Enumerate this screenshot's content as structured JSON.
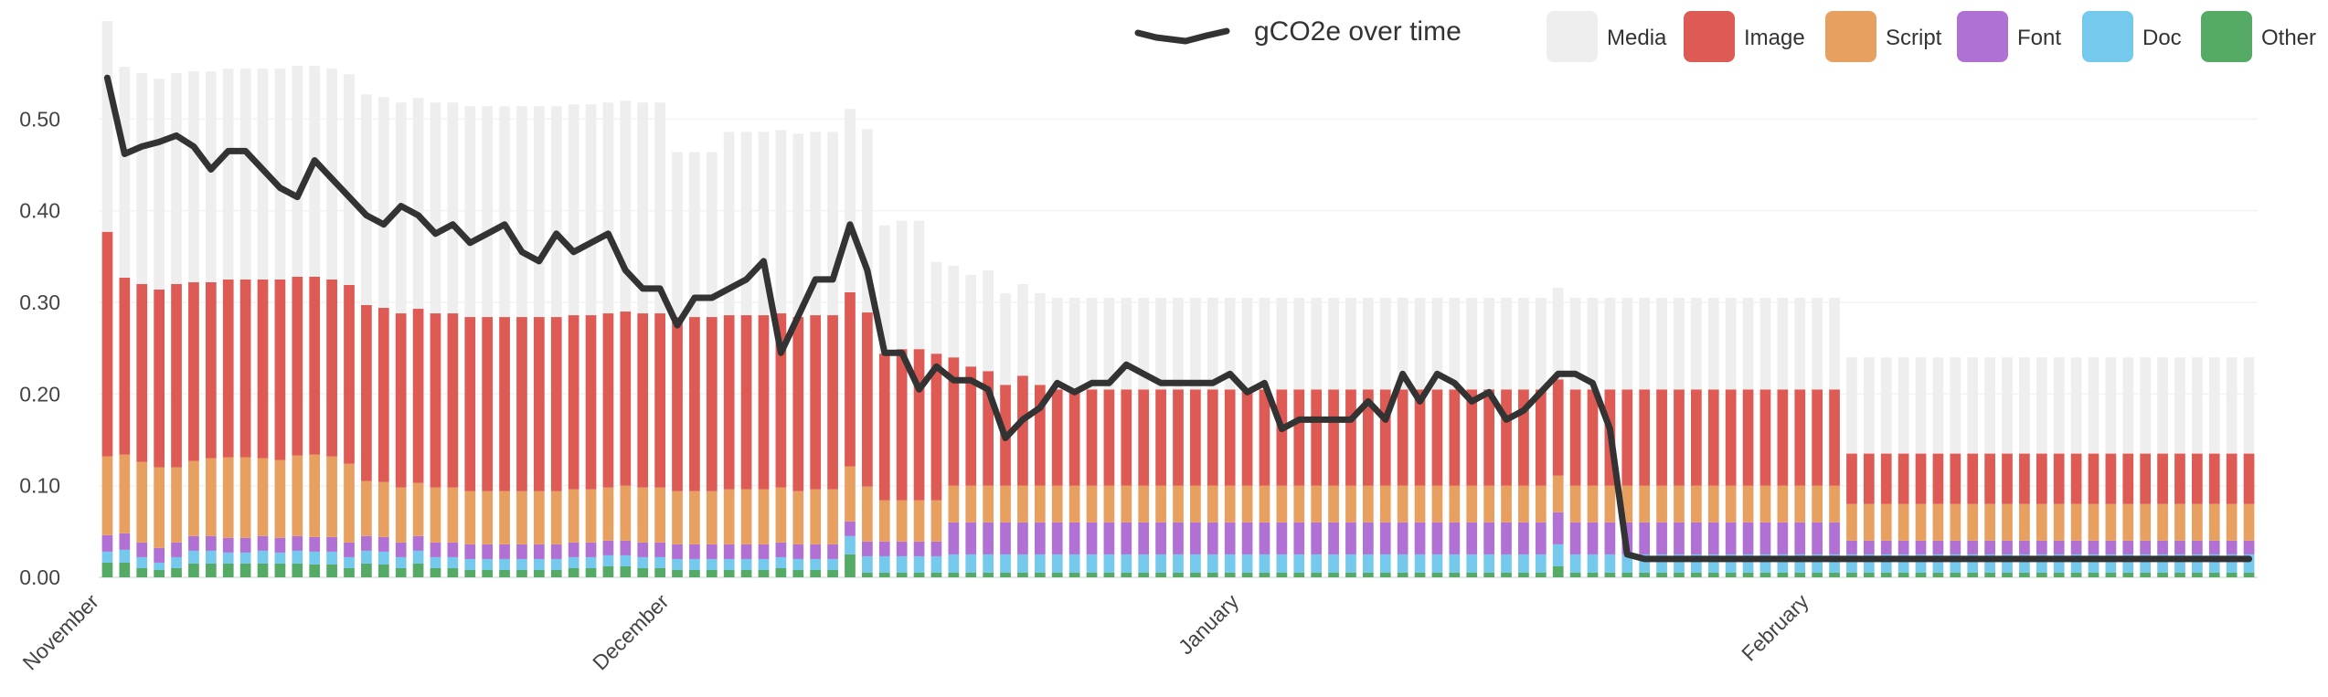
{
  "chart_data": {
    "type": "bar",
    "stacked": true,
    "title": "",
    "xlabel": "",
    "ylabel": "",
    "ylim": [
      0,
      0.6
    ],
    "y_ticks": [
      "0.00",
      "0.10",
      "0.20",
      "0.30",
      "0.40",
      "0.50"
    ],
    "grid": true,
    "legend_position": "top-right",
    "x_month_labels": [
      {
        "label": "November",
        "index": 0
      },
      {
        "label": "December",
        "index": 33
      },
      {
        "label": "January",
        "index": 66
      },
      {
        "label": "February",
        "index": 99
      }
    ],
    "series_order": [
      "Other",
      "Doc",
      "Font",
      "Script",
      "Image",
      "Media"
    ],
    "series": [
      {
        "name": "Other",
        "color": "#55aa66",
        "values": [
          0.016,
          0.016,
          0.01,
          0.008,
          0.01,
          0.015,
          0.015,
          0.015,
          0.015,
          0.015,
          0.015,
          0.015,
          0.014,
          0.014,
          0.01,
          0.015,
          0.014,
          0.01,
          0.015,
          0.01,
          0.01,
          0.008,
          0.008,
          0.008,
          0.008,
          0.008,
          0.008,
          0.01,
          0.01,
          0.012,
          0.012,
          0.01,
          0.01,
          0.008,
          0.008,
          0.008,
          0.008,
          0.008,
          0.008,
          0.01,
          0.008,
          0.008,
          0.008,
          0.025,
          0.005,
          0.005,
          0.005,
          0.005,
          0.005,
          0.005,
          0.005,
          0.005,
          0.005,
          0.005,
          0.005,
          0.005,
          0.005,
          0.005,
          0.005,
          0.005,
          0.005,
          0.005,
          0.005,
          0.005,
          0.005,
          0.005,
          0.005,
          0.005,
          0.005,
          0.005,
          0.005,
          0.005,
          0.005,
          0.005,
          0.005,
          0.005,
          0.005,
          0.005,
          0.005,
          0.005,
          0.005,
          0.005,
          0.005,
          0.005,
          0.012,
          0.005,
          0.005,
          0.005,
          0.005,
          0.005,
          0.005,
          0.005,
          0.005,
          0.005,
          0.005,
          0.005,
          0.005,
          0.005,
          0.005,
          0.005,
          0.005,
          0.005,
          0.005,
          0.005,
          0.005,
          0.005,
          0.005,
          0.005,
          0.005,
          0.005,
          0.005,
          0.005,
          0.005,
          0.005,
          0.005,
          0.005,
          0.005,
          0.005,
          0.005,
          0.005,
          0.005,
          0.005,
          0.005,
          0.005,
          0.005
        ]
      },
      {
        "name": "Doc",
        "color": "#74c9ec",
        "values": [
          0.012,
          0.014,
          0.012,
          0.008,
          0.012,
          0.014,
          0.014,
          0.012,
          0.012,
          0.014,
          0.012,
          0.014,
          0.014,
          0.014,
          0.012,
          0.014,
          0.014,
          0.012,
          0.014,
          0.012,
          0.012,
          0.012,
          0.012,
          0.012,
          0.012,
          0.012,
          0.012,
          0.012,
          0.012,
          0.012,
          0.012,
          0.012,
          0.012,
          0.012,
          0.012,
          0.012,
          0.012,
          0.012,
          0.012,
          0.012,
          0.012,
          0.012,
          0.012,
          0.02,
          0.018,
          0.018,
          0.018,
          0.018,
          0.018,
          0.02,
          0.02,
          0.02,
          0.02,
          0.02,
          0.02,
          0.02,
          0.02,
          0.02,
          0.02,
          0.02,
          0.02,
          0.02,
          0.02,
          0.02,
          0.02,
          0.02,
          0.02,
          0.02,
          0.02,
          0.02,
          0.02,
          0.02,
          0.02,
          0.02,
          0.02,
          0.02,
          0.02,
          0.02,
          0.02,
          0.02,
          0.02,
          0.02,
          0.02,
          0.02,
          0.024,
          0.02,
          0.02,
          0.02,
          0.02,
          0.02,
          0.02,
          0.02,
          0.02,
          0.02,
          0.02,
          0.02,
          0.02,
          0.02,
          0.02,
          0.02,
          0.02,
          0.02,
          0.02,
          0.02,
          0.02,
          0.02,
          0.02,
          0.02,
          0.02,
          0.02,
          0.02,
          0.02,
          0.02,
          0.02,
          0.02,
          0.02,
          0.02,
          0.02,
          0.02,
          0.02,
          0.02,
          0.02,
          0.02,
          0.02,
          0.02
        ]
      },
      {
        "name": "Font",
        "color": "#b070d4",
        "values": [
          0.018,
          0.018,
          0.016,
          0.016,
          0.016,
          0.016,
          0.016,
          0.016,
          0.016,
          0.016,
          0.016,
          0.016,
          0.016,
          0.016,
          0.016,
          0.016,
          0.016,
          0.016,
          0.016,
          0.016,
          0.016,
          0.016,
          0.016,
          0.016,
          0.016,
          0.016,
          0.016,
          0.016,
          0.016,
          0.016,
          0.016,
          0.016,
          0.016,
          0.016,
          0.016,
          0.016,
          0.016,
          0.016,
          0.016,
          0.016,
          0.016,
          0.016,
          0.016,
          0.016,
          0.016,
          0.016,
          0.016,
          0.016,
          0.016,
          0.035,
          0.035,
          0.035,
          0.035,
          0.035,
          0.035,
          0.035,
          0.035,
          0.035,
          0.035,
          0.035,
          0.035,
          0.035,
          0.035,
          0.035,
          0.035,
          0.035,
          0.035,
          0.035,
          0.035,
          0.035,
          0.035,
          0.035,
          0.035,
          0.035,
          0.035,
          0.035,
          0.035,
          0.035,
          0.035,
          0.035,
          0.035,
          0.035,
          0.035,
          0.035,
          0.035,
          0.035,
          0.035,
          0.035,
          0.035,
          0.035,
          0.035,
          0.035,
          0.035,
          0.035,
          0.035,
          0.035,
          0.035,
          0.035,
          0.035,
          0.035,
          0.035,
          0.015,
          0.015,
          0.015,
          0.015,
          0.015,
          0.015,
          0.015,
          0.015,
          0.015,
          0.015,
          0.015,
          0.015,
          0.015,
          0.015,
          0.015,
          0.015,
          0.015,
          0.015,
          0.015,
          0.015,
          0.015,
          0.015,
          0.015,
          0.015
        ]
      },
      {
        "name": "Script",
        "color": "#e8a060",
        "values": [
          0.086,
          0.086,
          0.088,
          0.088,
          0.082,
          0.082,
          0.085,
          0.088,
          0.088,
          0.085,
          0.085,
          0.088,
          0.09,
          0.088,
          0.086,
          0.06,
          0.06,
          0.06,
          0.058,
          0.06,
          0.06,
          0.058,
          0.058,
          0.058,
          0.058,
          0.058,
          0.058,
          0.058,
          0.058,
          0.058,
          0.06,
          0.06,
          0.06,
          0.058,
          0.058,
          0.058,
          0.06,
          0.06,
          0.06,
          0.06,
          0.058,
          0.06,
          0.06,
          0.06,
          0.06,
          0.045,
          0.045,
          0.045,
          0.045,
          0.04,
          0.04,
          0.04,
          0.04,
          0.04,
          0.04,
          0.04,
          0.04,
          0.04,
          0.04,
          0.04,
          0.04,
          0.04,
          0.04,
          0.04,
          0.04,
          0.04,
          0.04,
          0.04,
          0.04,
          0.04,
          0.04,
          0.04,
          0.04,
          0.04,
          0.04,
          0.04,
          0.04,
          0.04,
          0.04,
          0.04,
          0.04,
          0.04,
          0.04,
          0.04,
          0.04,
          0.04,
          0.04,
          0.04,
          0.04,
          0.04,
          0.04,
          0.04,
          0.04,
          0.04,
          0.04,
          0.04,
          0.04,
          0.04,
          0.04,
          0.04,
          0.04,
          0.04,
          0.04,
          0.04,
          0.04,
          0.04,
          0.04,
          0.04,
          0.04,
          0.04,
          0.04,
          0.04,
          0.04,
          0.04,
          0.04,
          0.04,
          0.04,
          0.04,
          0.04,
          0.04,
          0.04,
          0.04,
          0.04,
          0.04,
          0.04
        ]
      },
      {
        "name": "Image",
        "color": "#dd5a55",
        "values": [
          0.245,
          0.193,
          0.194,
          0.194,
          0.2,
          0.195,
          0.192,
          0.194,
          0.194,
          0.195,
          0.197,
          0.195,
          0.194,
          0.193,
          0.195,
          0.192,
          0.19,
          0.19,
          0.19,
          0.19,
          0.19,
          0.19,
          0.19,
          0.19,
          0.19,
          0.19,
          0.19,
          0.19,
          0.19,
          0.19,
          0.19,
          0.19,
          0.19,
          0.19,
          0.19,
          0.19,
          0.19,
          0.19,
          0.19,
          0.19,
          0.19,
          0.19,
          0.19,
          0.19,
          0.19,
          0.16,
          0.165,
          0.165,
          0.16,
          0.14,
          0.13,
          0.125,
          0.11,
          0.12,
          0.11,
          0.105,
          0.105,
          0.105,
          0.105,
          0.105,
          0.105,
          0.105,
          0.105,
          0.105,
          0.105,
          0.105,
          0.105,
          0.105,
          0.105,
          0.105,
          0.105,
          0.105,
          0.105,
          0.105,
          0.105,
          0.105,
          0.105,
          0.105,
          0.105,
          0.105,
          0.105,
          0.105,
          0.105,
          0.105,
          0.105,
          0.105,
          0.105,
          0.105,
          0.105,
          0.105,
          0.105,
          0.105,
          0.105,
          0.105,
          0.105,
          0.105,
          0.105,
          0.105,
          0.105,
          0.105,
          0.105,
          0.055,
          0.055,
          0.055,
          0.055,
          0.055,
          0.055,
          0.055,
          0.055,
          0.055,
          0.055,
          0.055,
          0.055,
          0.055,
          0.055,
          0.055,
          0.055,
          0.055,
          0.055,
          0.055,
          0.055,
          0.055,
          0.055,
          0.055,
          0.055
        ]
      },
      {
        "name": "Media",
        "color": "#eeeeee",
        "values": [
          0.23,
          0.23,
          0.23,
          0.23,
          0.23,
          0.23,
          0.23,
          0.23,
          0.23,
          0.23,
          0.23,
          0.23,
          0.23,
          0.23,
          0.23,
          0.23,
          0.23,
          0.23,
          0.23,
          0.23,
          0.23,
          0.23,
          0.23,
          0.23,
          0.23,
          0.23,
          0.23,
          0.23,
          0.23,
          0.23,
          0.23,
          0.23,
          0.23,
          0.18,
          0.18,
          0.18,
          0.2,
          0.2,
          0.2,
          0.2,
          0.2,
          0.2,
          0.2,
          0.2,
          0.2,
          0.14,
          0.14,
          0.14,
          0.1,
          0.1,
          0.1,
          0.11,
          0.1,
          0.1,
          0.1,
          0.1,
          0.1,
          0.1,
          0.1,
          0.1,
          0.1,
          0.1,
          0.1,
          0.1,
          0.1,
          0.1,
          0.1,
          0.1,
          0.1,
          0.1,
          0.1,
          0.1,
          0.1,
          0.1,
          0.1,
          0.1,
          0.1,
          0.1,
          0.1,
          0.1,
          0.1,
          0.1,
          0.1,
          0.1,
          0.1,
          0.1,
          0.1,
          0.1,
          0.1,
          0.1,
          0.1,
          0.1,
          0.1,
          0.1,
          0.1,
          0.1,
          0.1,
          0.1,
          0.1,
          0.1,
          0.1,
          0.105,
          0.105,
          0.105,
          0.105,
          0.105,
          0.105,
          0.105,
          0.105,
          0.105,
          0.105,
          0.105,
          0.105,
          0.105,
          0.105,
          0.105,
          0.105,
          0.105,
          0.105,
          0.105,
          0.105,
          0.105,
          0.105,
          0.105,
          0.105
        ]
      }
    ],
    "line_series": {
      "name": "gCO2e over time",
      "color": "#333333",
      "values": [
        0.545,
        0.462,
        0.47,
        0.475,
        0.482,
        0.47,
        0.445,
        0.465,
        0.465,
        0.445,
        0.425,
        0.415,
        0.455,
        0.435,
        0.415,
        0.395,
        0.385,
        0.405,
        0.395,
        0.375,
        0.385,
        0.365,
        0.375,
        0.385,
        0.355,
        0.345,
        0.375,
        0.355,
        0.365,
        0.375,
        0.335,
        0.315,
        0.315,
        0.275,
        0.305,
        0.305,
        0.315,
        0.325,
        0.345,
        0.245,
        0.285,
        0.325,
        0.325,
        0.385,
        0.335,
        0.245,
        0.245,
        0.205,
        0.23,
        0.215,
        0.215,
        0.205,
        0.152,
        0.172,
        0.185,
        0.212,
        0.202,
        0.212,
        0.212,
        0.232,
        0.222,
        0.212,
        0.212,
        0.212,
        0.212,
        0.222,
        0.202,
        0.212,
        0.162,
        0.172,
        0.172,
        0.172,
        0.172,
        0.192,
        0.172,
        0.222,
        0.192,
        0.222,
        0.212,
        0.192,
        0.202,
        0.172,
        0.182,
        0.202,
        0.222,
        0.222,
        0.212,
        0.162,
        0.025,
        0.02,
        0.02,
        0.02,
        0.02,
        0.02,
        0.02,
        0.02,
        0.02,
        0.02,
        0.02,
        0.02,
        0.02,
        0.02,
        0.02,
        0.02,
        0.02,
        0.02,
        0.02,
        0.02,
        0.02,
        0.02,
        0.02,
        0.02,
        0.02,
        0.02,
        0.02,
        0.02,
        0.02,
        0.02,
        0.02,
        0.02,
        0.02,
        0.02,
        0.02,
        0.02,
        0.02
      ]
    },
    "legend": {
      "line_label": "gCO2e over time",
      "items": [
        {
          "label": "Media",
          "color": "#eeeeee"
        },
        {
          "label": "Image",
          "color": "#dd5a55"
        },
        {
          "label": "Script",
          "color": "#e8a060"
        },
        {
          "label": "Font",
          "color": "#b070d4"
        },
        {
          "label": "Doc",
          "color": "#74c9ec"
        },
        {
          "label": "Other",
          "color": "#55aa66"
        }
      ]
    }
  }
}
